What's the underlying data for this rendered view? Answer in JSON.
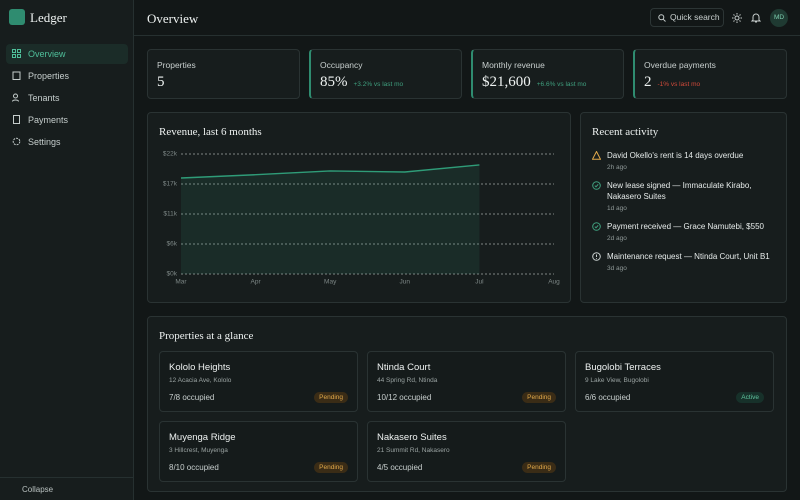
{
  "brand": "Ledger",
  "nav": {
    "items": [
      "Overview",
      "Properties",
      "Tenants",
      "Payments",
      "Settings"
    ],
    "collapse": "Collapse"
  },
  "header": {
    "title": "Overview",
    "search": "Quick search",
    "avatar": "MD"
  },
  "stats": [
    {
      "label": "Properties",
      "value": "5"
    },
    {
      "label": "Occupancy",
      "value": "85%",
      "delta": "+3.2% vs last mo"
    },
    {
      "label": "Monthly revenue",
      "value": "$21,600",
      "delta": "+6.6% vs last mo"
    },
    {
      "label": "Overdue payments",
      "value": "2",
      "delta": "-1% vs last mo"
    }
  ],
  "chart_data": {
    "type": "line",
    "title": "Revenue, last 6 months",
    "categories": [
      "Mar",
      "Apr",
      "May",
      "Jun",
      "Jul",
      "Aug"
    ],
    "values": [
      17600,
      18200,
      18900,
      18700,
      20000,
      null
    ],
    "color": "#2f9c78",
    "ylim": [
      0,
      22000
    ],
    "yticks": [
      {
        "value": 0,
        "label": "$0k"
      },
      {
        "value": 5500,
        "label": "$6k"
      },
      {
        "value": 11000,
        "label": "$11k"
      },
      {
        "value": 16500,
        "label": "$17k"
      },
      {
        "value": 22000,
        "label": "$22k"
      }
    ],
    "grid": true
  },
  "activity": {
    "title": "Recent activity",
    "items": [
      {
        "text": "David Okello's rent is 14 days overdue",
        "time": "2h ago"
      },
      {
        "text": "New lease signed — Immaculate Kirabo, Nakasero Suites",
        "time": "1d ago"
      },
      {
        "text": "Payment received — Grace Namutebi, $550",
        "time": "2d ago"
      },
      {
        "text": "Maintenance request — Ntinda Court, Unit B1",
        "time": "3d ago"
      }
    ]
  },
  "properties": {
    "title": "Properties at a glance",
    "items": [
      {
        "name": "Kololo Heights",
        "address": "12 Acacia Ave, Kololo",
        "occupancy": "7/8 occupied",
        "status": "Pending"
      },
      {
        "name": "Ntinda Court",
        "address": "44 Spring Rd, Ntinda",
        "occupancy": "10/12 occupied",
        "status": "Pending"
      },
      {
        "name": "Bugolobi Terraces",
        "address": "9 Lake View, Bugolobi",
        "occupancy": "6/6 occupied",
        "status": "Active"
      },
      {
        "name": "Muyenga Ridge",
        "address": "3 Hillcrest, Muyenga",
        "occupancy": "8/10 occupied",
        "status": "Pending"
      },
      {
        "name": "Nakasero Suites",
        "address": "21 Summit Rd, Nakasero",
        "occupancy": "4/5 occupied",
        "status": "Pending"
      }
    ]
  }
}
